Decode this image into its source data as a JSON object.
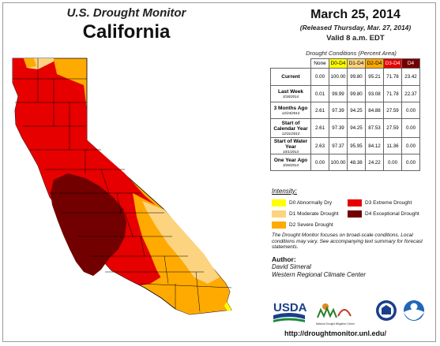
{
  "header": {
    "subtitle": "U.S. Drought Monitor",
    "state": "California",
    "date": "March 25, 2014",
    "released": "(Released Thursday, Mar. 27, 2014)",
    "valid": "Valid 8 a.m. EDT"
  },
  "table": {
    "title": "Drought Conditions (Percent Area)",
    "columns": [
      "None",
      "D0-D4",
      "D1-D4",
      "D2-D4",
      "D3-D4",
      "D4"
    ],
    "column_colors": [
      "#ffffff",
      "#ffff00",
      "#fcd37f",
      "#ffaa00",
      "#e60000",
      "#730000"
    ],
    "rows": [
      {
        "label": "Current",
        "date": "",
        "values": [
          "0.00",
          "100.00",
          "99.80",
          "95.21",
          "71.78",
          "23.42"
        ]
      },
      {
        "label": "Last Week",
        "date": "3/18/2014",
        "values": [
          "0.01",
          "99.99",
          "99.80",
          "93.08",
          "71.78",
          "22.37"
        ]
      },
      {
        "label": "3 Months Ago",
        "date": "12/24/2013",
        "values": [
          "2.61",
          "97.39",
          "94.25",
          "84.88",
          "27.59",
          "0.00"
        ]
      },
      {
        "label": "Start of Calendar Year",
        "date": "12/31/2013",
        "values": [
          "2.61",
          "97.39",
          "94.25",
          "87.53",
          "27.59",
          "0.00"
        ]
      },
      {
        "label": "Start of Water Year",
        "date": "10/1/2013",
        "values": [
          "2.63",
          "97.37",
          "95.95",
          "84.12",
          "11.36",
          "0.00"
        ]
      },
      {
        "label": "One Year Ago",
        "date": "3/26/2013",
        "values": [
          "0.00",
          "100.00",
          "48.38",
          "24.22",
          "0.00",
          "0.00"
        ]
      }
    ]
  },
  "legend": {
    "title": "Intensity:",
    "items": [
      {
        "label": "D0 Abnormally Dry",
        "color": "#ffff00"
      },
      {
        "label": "D1 Moderate Drought",
        "color": "#fcd37f"
      },
      {
        "label": "D2 Severe Drought",
        "color": "#ffaa00"
      },
      {
        "label": "D3 Extreme Drought",
        "color": "#e60000"
      },
      {
        "label": "D4 Exceptional Drought",
        "color": "#730000"
      }
    ]
  },
  "note": "The Drought Monitor focuses on broad-scale conditions. Local conditions may vary. See accompanying text summary for forecast statements.",
  "author": {
    "heading": "Author:",
    "name": "David Simeral",
    "org": "Western Regional Climate Center"
  },
  "logos": {
    "usda": "USDA",
    "ndmc": "National Drought Mitigation Center"
  },
  "url": "http://droughtmonitor.unl.edu/"
}
